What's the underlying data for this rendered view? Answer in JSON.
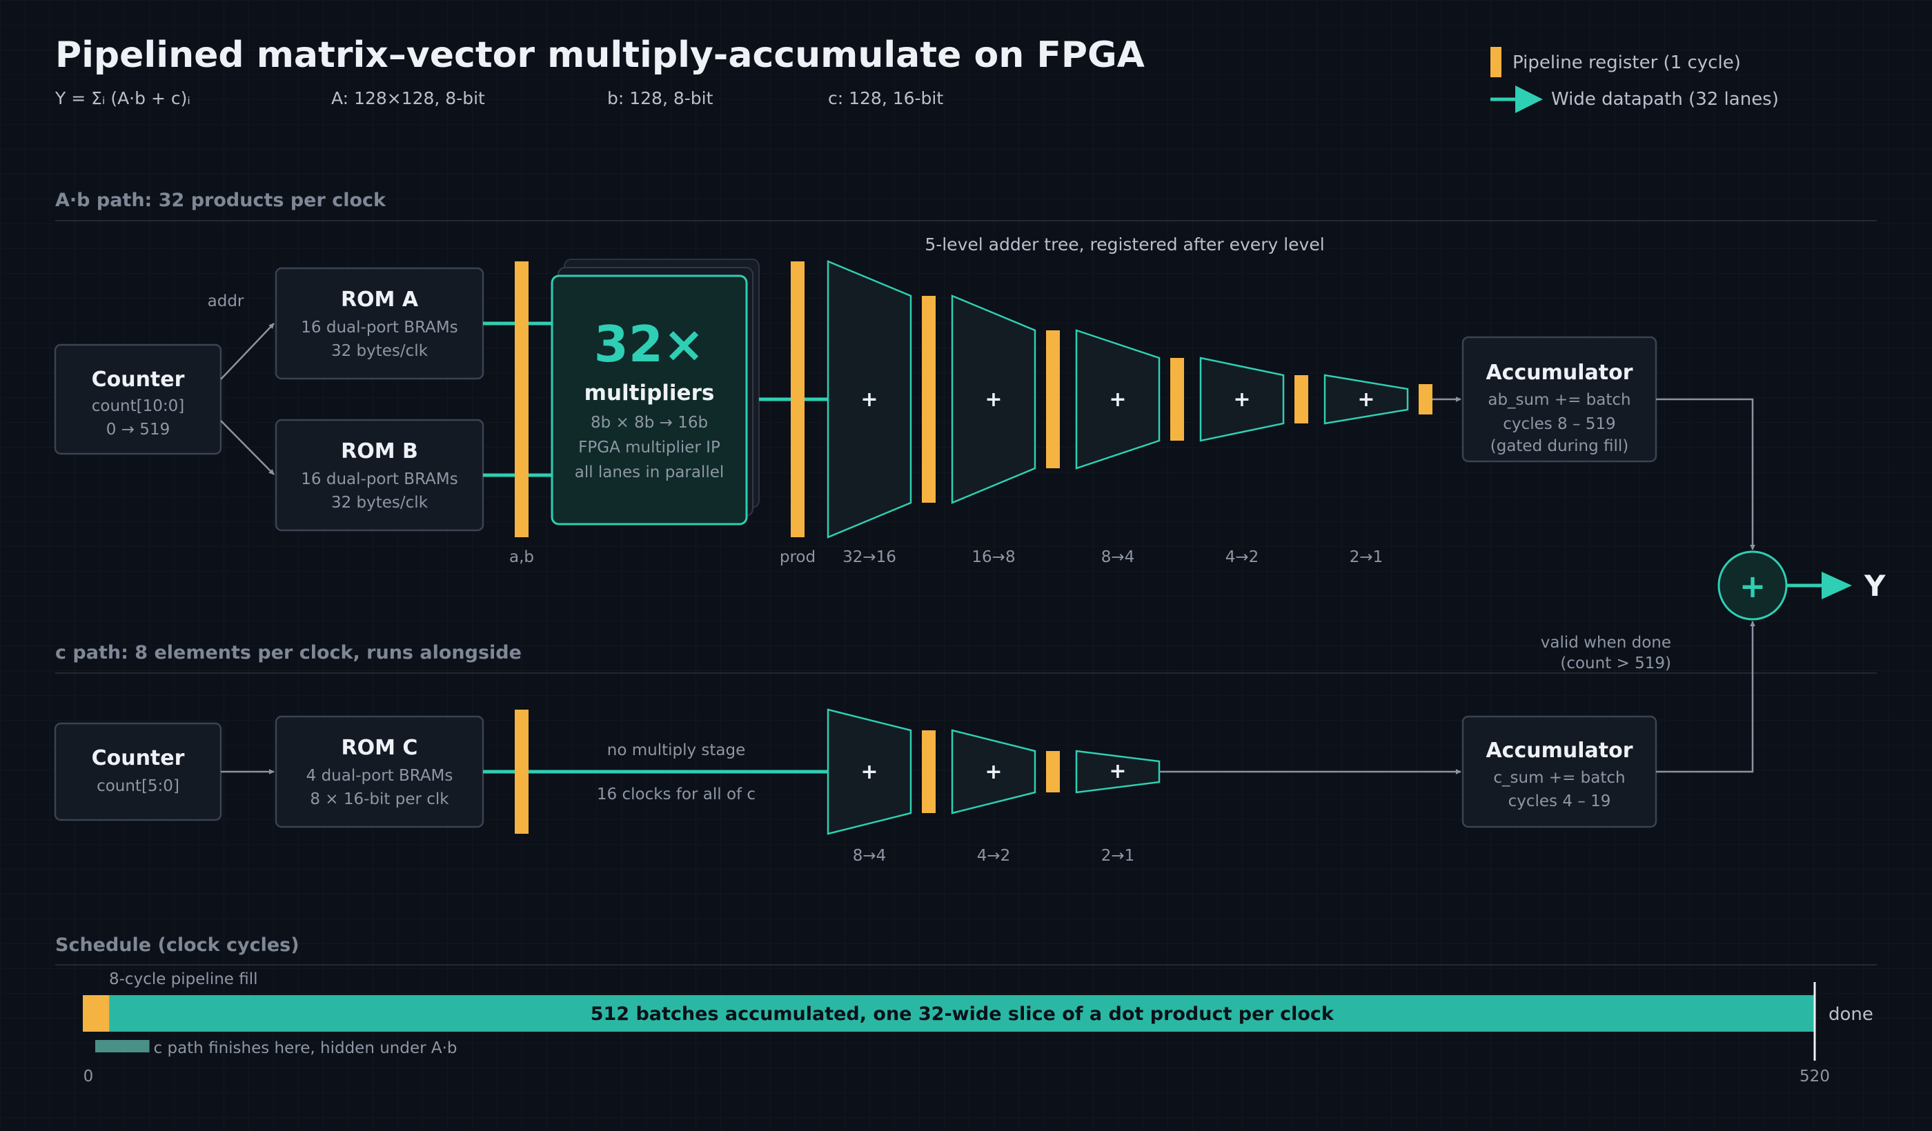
{
  "header": {
    "title": "Pipelined matrix–vector multiply-accumulate on FPGA",
    "equation": "Y = Σᵢ (A·b + c)ᵢ",
    "param_a": "A: 128×128, 8-bit",
    "param_b": "b: 128, 8-bit",
    "param_c": "c: 128, 16-bit"
  },
  "legend": {
    "register": "Pipeline register (1 cycle)",
    "datapath": "Wide datapath (32 lanes)"
  },
  "ab_path": {
    "section_label": "A·b path: 32 products per clock",
    "counter": {
      "title": "Counter",
      "line1": "count[10:0]",
      "line2": "0 → 519"
    },
    "addr_label": "addr",
    "rom_a": {
      "title": "ROM A",
      "line1": "16 dual-port BRAMs",
      "line2": "32 bytes/clk"
    },
    "rom_b": {
      "title": "ROM B",
      "line1": "16 dual-port BRAMs",
      "line2": "32 bytes/clk"
    },
    "reg_label_ab": "a,b",
    "multiplier": {
      "count": "32×",
      "title": "multipliers",
      "line1": "8b × 8b → 16b",
      "line2": "FPGA multiplier IP",
      "line3": "all lanes in parallel"
    },
    "reg_label_prod": "prod",
    "tree_note": "5-level adder tree, registered after every level",
    "tree_levels": [
      "32→16",
      "16→8",
      "8→4",
      "4→2",
      "2→1"
    ],
    "plus": "+",
    "accumulator": {
      "title": "Accumulator",
      "line1": "ab_sum += batch",
      "line2": "cycles 8 – 519",
      "line3": "(gated during fill)"
    }
  },
  "c_path": {
    "section_label": "c path: 8 elements per clock, runs alongside",
    "counter": {
      "title": "Counter",
      "line1": "count[5:0]"
    },
    "rom_c": {
      "title": "ROM C",
      "line1": "4 dual-port BRAMs",
      "line2": "8 × 16-bit per clk"
    },
    "no_mult_note": "no multiply stage",
    "clocks_note": "16 clocks for all of c",
    "tree_levels": [
      "8→4",
      "4→2",
      "2→1"
    ],
    "accumulator": {
      "title": "Accumulator",
      "line1": "c_sum += batch",
      "line2": "cycles 4 – 19"
    }
  },
  "output": {
    "valid_line1": "valid when done",
    "valid_line2": "(count > 519)",
    "sum_symbol": "+",
    "label": "Y"
  },
  "schedule": {
    "section_label": "Schedule (clock cycles)",
    "fill_label": "8-cycle pipeline fill",
    "bar_label": "512 batches accumulated, one 32-wide slice of a dot product per clock",
    "done_label": "done",
    "c_note": "c path finishes here, hidden under A·b",
    "tick_start": "0",
    "tick_end": "520",
    "axis_start": 0,
    "axis_end": 520,
    "fill_cycles": 8,
    "c_path_cycles": 20,
    "done_cycle": 520
  },
  "colors": {
    "background": "#0c1018",
    "teal": "#2ecfb4",
    "register": "#f5b342",
    "c_bar": "#4a8f88"
  }
}
